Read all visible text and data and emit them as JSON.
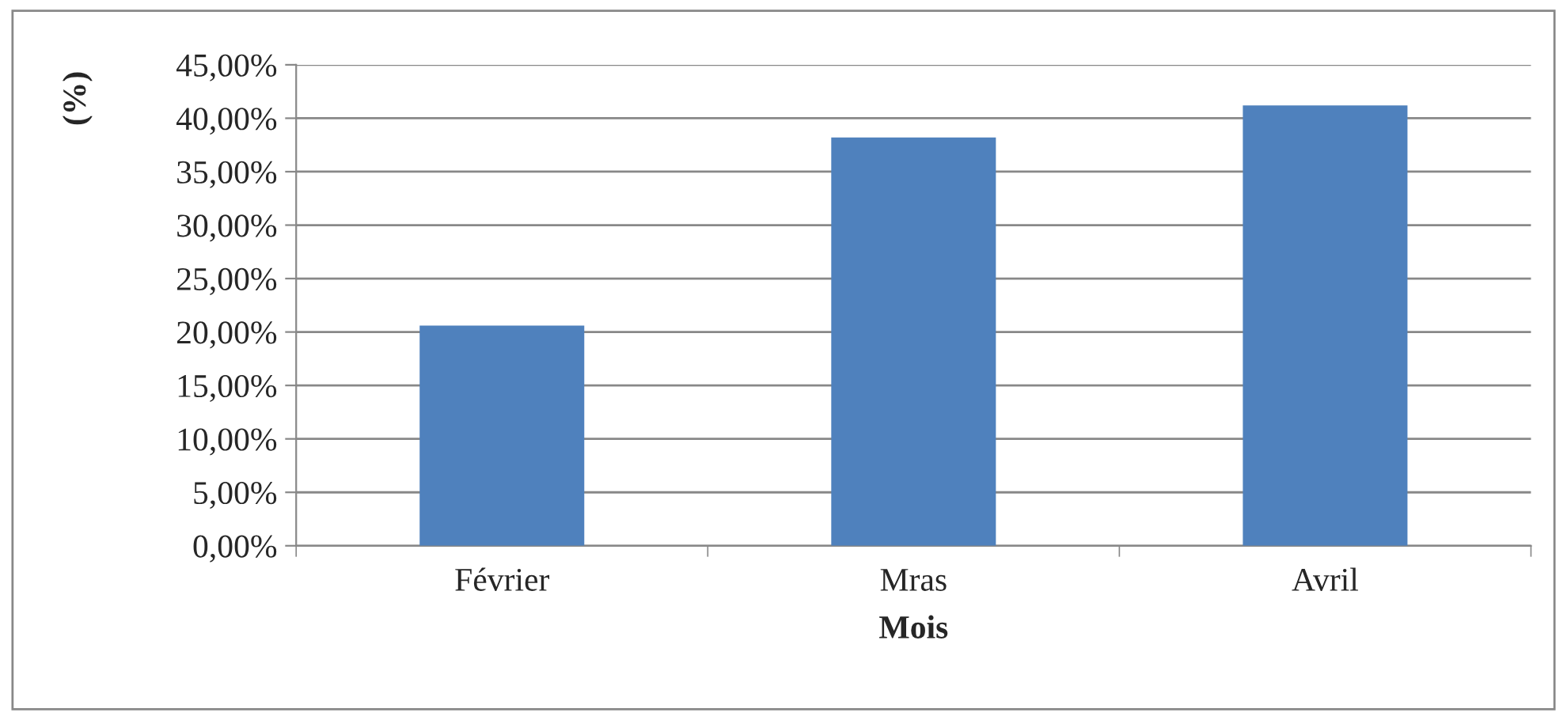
{
  "chart_data": {
    "type": "bar",
    "xlabel": "Mois",
    "ylabel": "(%)",
    "categories": [
      "Février",
      "Mras",
      "Avril"
    ],
    "values": [
      20.6,
      38.2,
      41.2
    ],
    "color": "#4f81bd",
    "ylim": [
      0,
      45
    ],
    "yticks": [
      {
        "value": 0,
        "label": "0,00%"
      },
      {
        "value": 5,
        "label": "5,00%"
      },
      {
        "value": 10,
        "label": "10,00%"
      },
      {
        "value": 15,
        "label": "15,00%"
      },
      {
        "value": 20,
        "label": "20,00%"
      },
      {
        "value": 25,
        "label": "25,00%"
      },
      {
        "value": 30,
        "label": "30,00%"
      },
      {
        "value": 35,
        "label": "35,00%"
      },
      {
        "value": 40,
        "label": "40,00%"
      },
      {
        "value": 45,
        "label": "45,00%"
      }
    ],
    "grid": "y"
  }
}
